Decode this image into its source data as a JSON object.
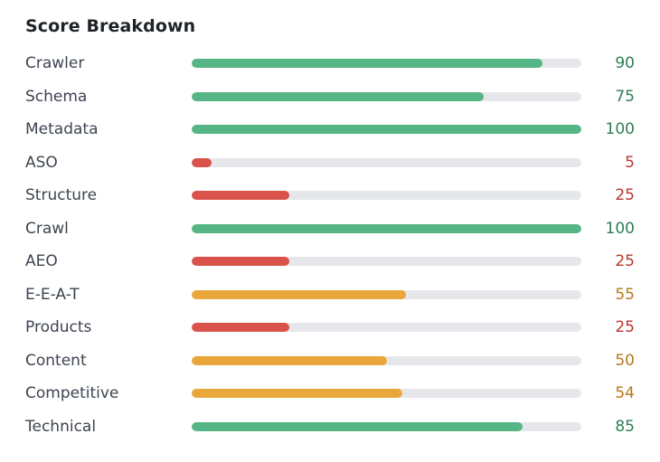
{
  "title": "Score Breakdown",
  "colors": {
    "good": "#55b585",
    "good_text": "#2f7d55",
    "warn": "#e8a73b",
    "warn_text": "#b9781c",
    "bad": "#d9534a",
    "bad_text": "#b8352d"
  },
  "rows": [
    {
      "label": "Crawler",
      "score": "90",
      "fraction": 0.9,
      "status": "good"
    },
    {
      "label": "Schema",
      "score": "75",
      "fraction": 0.75,
      "status": "good"
    },
    {
      "label": "Metadata",
      "score": "100",
      "fraction": 1.0,
      "status": "good"
    },
    {
      "label": "ASO",
      "score": "5",
      "fraction": 0.05,
      "status": "bad"
    },
    {
      "label": "Structure",
      "score": "25",
      "fraction": 0.25,
      "status": "bad"
    },
    {
      "label": "Crawl",
      "score": "100",
      "fraction": 1.0,
      "status": "good"
    },
    {
      "label": "AEO",
      "score": "25",
      "fraction": 0.25,
      "status": "bad"
    },
    {
      "label": "E-E-A-T",
      "score": "55",
      "fraction": 0.55,
      "status": "warn"
    },
    {
      "label": "Products",
      "score": "25",
      "fraction": 0.25,
      "status": "bad"
    },
    {
      "label": "Content",
      "score": "50",
      "fraction": 0.5,
      "status": "warn"
    },
    {
      "label": "Competitive",
      "score": "54",
      "fraction": 0.54,
      "status": "warn"
    },
    {
      "label": "Technical",
      "score": "85",
      "fraction": 0.85,
      "status": "good"
    }
  ]
}
